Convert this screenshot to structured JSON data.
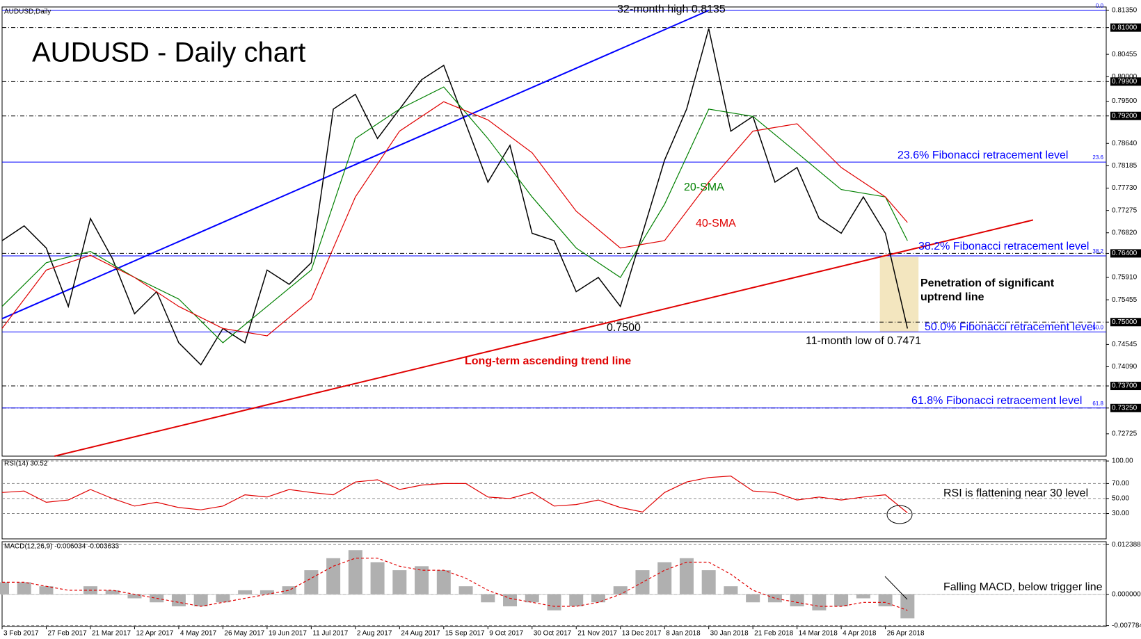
{
  "chart_data": [
    {
      "type": "line",
      "title": "AUDUSD - Daily chart",
      "subtitle": "AUDUSD,Daily",
      "annotations": [
        "32-month high 0.8135",
        "23.6% Fibonacci retracement level",
        "38.2% Fibonacci retracement level",
        "Penetration of significant",
        "uptrend line",
        "50.0% Fibonacci retracement level",
        "0.7500",
        "11-month low of 0.7471",
        "Long-term ascending trend line",
        "61.8% Fibonacci retracement level"
      ],
      "x": [
        0,
        8,
        16,
        24,
        32,
        40,
        48,
        56,
        64,
        72,
        80,
        88,
        96,
        104,
        112,
        120,
        128,
        136,
        144,
        152,
        160,
        168,
        176,
        184,
        192,
        200,
        208,
        216,
        224,
        232,
        240,
        248,
        256,
        264,
        272,
        280,
        288,
        296,
        304,
        312,
        320,
        328
      ],
      "xlim": [
        0,
        400
      ],
      "ylim": [
        0.7227,
        0.8142
      ],
      "yticks": [
        {
          "value": 0.8135,
          "label": "0.81350"
        },
        {
          "value": 0.81,
          "label": "0.81000"
        },
        {
          "value": 0.80455,
          "label": "0.80455"
        },
        {
          "value": 0.8,
          "label": "0.80000"
        },
        {
          "value": 0.799,
          "label": "0.79900"
        },
        {
          "value": 0.795,
          "label": "0.79500"
        },
        {
          "value": 0.792,
          "label": "0.79200"
        },
        {
          "value": 0.7864,
          "label": "0.78640"
        },
        {
          "value": 0.78185,
          "label": "0.78185"
        },
        {
          "value": 0.7773,
          "label": "0.77730"
        },
        {
          "value": 0.77275,
          "label": "0.77275"
        },
        {
          "value": 0.7682,
          "label": "0.76820"
        },
        {
          "value": 0.764,
          "label": "0.76400"
        },
        {
          "value": 0.7591,
          "label": "0.75910"
        },
        {
          "value": 0.75455,
          "label": "0.75455"
        },
        {
          "value": 0.75,
          "label": "0.75000"
        },
        {
          "value": 0.74545,
          "label": "0.74545"
        },
        {
          "value": 0.7409,
          "label": "0.74090"
        },
        {
          "value": 0.737,
          "label": "0.73700"
        },
        {
          "value": 0.7325,
          "label": "0.73250"
        },
        {
          "value": 0.72725,
          "label": "0.72725"
        }
      ],
      "levels": [
        0.81,
        0.799,
        0.792,
        0.764,
        0.75,
        0.737,
        0.7325
      ],
      "fib_levels": [
        {
          "value": 0.8135,
          "label": "0.0"
        },
        {
          "value": 0.7826,
          "label": "23.6"
        },
        {
          "value": 0.7635,
          "label": "38.2"
        },
        {
          "value": 0.748,
          "label": "50.0"
        },
        {
          "value": 0.7325,
          "label": "61.8"
        }
      ],
      "fib_color": "#0000ff",
      "highlight": {
        "x": [
          318,
          332
        ],
        "values": [
          0.7633,
          0.748
        ],
        "color": "#f3e6bf"
      },
      "trend_lines": [
        {
          "color": "#e00000",
          "x": [
            19,
            373.5
          ],
          "values": [
            0.7227,
            0.7708
          ]
        },
        {
          "color": "#0000ff",
          "x": [
            0,
            256
          ],
          "values": [
            0.7507,
            0.8135
          ]
        }
      ],
      "series": [
        {
          "color": "#000000",
          "values": [
            0.7666,
            0.7696,
            0.7651,
            0.7532,
            0.7711,
            0.7629,
            0.7517,
            0.7562,
            0.7458,
            0.7413,
            0.7487,
            0.7458,
            0.7606,
            0.7577,
            0.7621,
            0.7934,
            0.7964,
            0.7874,
            0.7934,
            0.7994,
            0.8023,
            0.7904,
            0.7785,
            0.786,
            0.7681,
            0.7666,
            0.7562,
            0.7591,
            0.7532,
            0.7681,
            0.783,
            0.7934,
            0.8098,
            0.7889,
            0.7919,
            0.7785,
            0.7815,
            0.7711,
            0.7681,
            0.7755,
            0.7681,
            0.7487
          ]
        },
        {
          "name": "20-SMA",
          "color": "#008000",
          "x": [
            0,
            16,
            32,
            48,
            64,
            80,
            96,
            112,
            128,
            144,
            160,
            176,
            192,
            208,
            224,
            240,
            256,
            272,
            288,
            304,
            320,
            328
          ],
          "values": [
            0.7532,
            0.7621,
            0.7644,
            0.7591,
            0.7547,
            0.7458,
            0.7532,
            0.7606,
            0.7874,
            0.7934,
            0.7979,
            0.7874,
            0.7755,
            0.7651,
            0.7591,
            0.774,
            0.7934,
            0.7919,
            0.7845,
            0.777,
            0.7755,
            0.7666
          ]
        },
        {
          "name": "40-SMA",
          "color": "#e00000",
          "x": [
            0,
            16,
            32,
            48,
            64,
            80,
            96,
            112,
            128,
            144,
            160,
            176,
            192,
            208,
            224,
            240,
            256,
            272,
            288,
            304,
            320,
            328
          ],
          "values": [
            0.7487,
            0.7606,
            0.7636,
            0.7591,
            0.7532,
            0.7487,
            0.7472,
            0.7547,
            0.7755,
            0.7889,
            0.7949,
            0.7912,
            0.7845,
            0.7726,
            0.7651,
            0.7666,
            0.7785,
            0.7889,
            0.7904,
            0.7815,
            0.7755,
            0.7703
          ]
        }
      ]
    },
    {
      "type": "line",
      "title": "RSI(14) 30.52",
      "annotations": [
        "RSI is flattening near 30 level"
      ],
      "x": [
        0,
        8,
        16,
        24,
        32,
        40,
        48,
        56,
        64,
        72,
        80,
        88,
        96,
        104,
        112,
        120,
        128,
        136,
        144,
        152,
        160,
        168,
        176,
        184,
        192,
        200,
        208,
        216,
        224,
        232,
        240,
        248,
        256,
        264,
        272,
        280,
        288,
        296,
        304,
        312,
        320,
        328
      ],
      "xlim": [
        0,
        400
      ],
      "ylim": [
        -3.8,
        101.9
      ],
      "yticks": [
        {
          "value": 100,
          "label": "100.00"
        },
        {
          "value": 70,
          "label": "70.00"
        },
        {
          "value": 50,
          "label": "50.00"
        },
        {
          "value": 30,
          "label": "30.00"
        }
      ],
      "series": [
        {
          "color": "#e00000",
          "values": [
            58,
            60,
            45,
            48,
            62,
            50,
            40,
            45,
            38,
            35,
            40,
            55,
            52,
            62,
            58,
            55,
            72,
            75,
            62,
            68,
            70,
            70,
            52,
            50,
            58,
            40,
            42,
            48,
            38,
            32,
            58,
            72,
            78,
            80,
            60,
            58,
            48,
            52,
            48,
            52,
            55,
            31
          ]
        }
      ]
    },
    {
      "type": "bar",
      "title": "MACD(12,26,9) -0.006034 -0.003633",
      "annotations": [
        "Falling MACD, below trigger line"
      ],
      "x": [
        0,
        8,
        16,
        24,
        32,
        40,
        48,
        56,
        64,
        72,
        80,
        88,
        96,
        104,
        112,
        120,
        128,
        136,
        144,
        152,
        160,
        168,
        176,
        184,
        192,
        200,
        208,
        216,
        224,
        232,
        240,
        248,
        256,
        264,
        272,
        280,
        288,
        296,
        304,
        312,
        320,
        328
      ],
      "xlim": [
        0,
        400
      ],
      "ylim": [
        -0.00802,
        0.01312
      ],
      "yticks": [
        {
          "value": 0.012388,
          "label": "0.012388"
        },
        {
          "value": 0,
          "label": "0.000000"
        },
        {
          "value": -0.007784,
          "label": "-0.007784"
        }
      ],
      "xticks": [
        {
          "value": 0,
          "label": "3 Feb 2017"
        },
        {
          "value": 16,
          "label": "27 Feb 2017"
        },
        {
          "value": 32,
          "label": "21 Mar 2017"
        },
        {
          "value": 48,
          "label": "12 Apr 2017"
        },
        {
          "value": 64,
          "label": "4 May 2017"
        },
        {
          "value": 80,
          "label": "26 May 2017"
        },
        {
          "value": 96,
          "label": "19 Jun 2017"
        },
        {
          "value": 112,
          "label": "11 Jul 2017"
        },
        {
          "value": 128,
          "label": "2 Aug 2017"
        },
        {
          "value": 144,
          "label": "24 Aug 2017"
        },
        {
          "value": 160,
          "label": "15 Sep 2017"
        },
        {
          "value": 176,
          "label": "9 Oct 2017"
        },
        {
          "value": 192,
          "label": "30 Oct 2017"
        },
        {
          "value": 208,
          "label": "21 Nov 2017"
        },
        {
          "value": 224,
          "label": "13 Dec 2017"
        },
        {
          "value": 240,
          "label": "8 Jan 2018"
        },
        {
          "value": 256,
          "label": "30 Jan 2018"
        },
        {
          "value": 272,
          "label": "21 Feb 2018"
        },
        {
          "value": 288,
          "label": "14 Mar 2018"
        },
        {
          "value": 304,
          "label": "4 Apr 2018"
        },
        {
          "value": 320,
          "label": "26 Apr 2018"
        }
      ],
      "series": [
        {
          "type": "bar",
          "color": "#b0b0b0",
          "values": [
            0.003,
            0.003,
            0.002,
            0,
            0.002,
            0.001,
            -0.001,
            -0.002,
            -0.003,
            -0.003,
            -0.002,
            0.001,
            0.001,
            0.002,
            0.006,
            0.009,
            0.011,
            0.008,
            0.006,
            0.007,
            0.006,
            0.002,
            -0.002,
            -0.003,
            -0.002,
            -0.004,
            -0.003,
            -0.002,
            0.002,
            0.006,
            0.008,
            0.009,
            0.006,
            0.002,
            -0.002,
            -0.002,
            -0.003,
            -0.004,
            -0.003,
            -0.001,
            -0.003,
            -0.006
          ]
        },
        {
          "type": "line",
          "color": "#e00000",
          "values": [
            0.003,
            0.003,
            0.002,
            0.001,
            0.001,
            0.001,
            0,
            -0.001,
            -0.002,
            -0.003,
            -0.002,
            -0.001,
            0,
            0.001,
            0.004,
            0.007,
            0.009,
            0.009,
            0.007,
            0.006,
            0.006,
            0.004,
            0.001,
            -0.001,
            -0.002,
            -0.003,
            -0.003,
            -0.002,
            0,
            0.003,
            0.006,
            0.008,
            0.008,
            0.005,
            0.001,
            -0.001,
            -0.002,
            -0.003,
            -0.003,
            -0.002,
            -0.002,
            -0.004
          ]
        }
      ]
    }
  ]
}
